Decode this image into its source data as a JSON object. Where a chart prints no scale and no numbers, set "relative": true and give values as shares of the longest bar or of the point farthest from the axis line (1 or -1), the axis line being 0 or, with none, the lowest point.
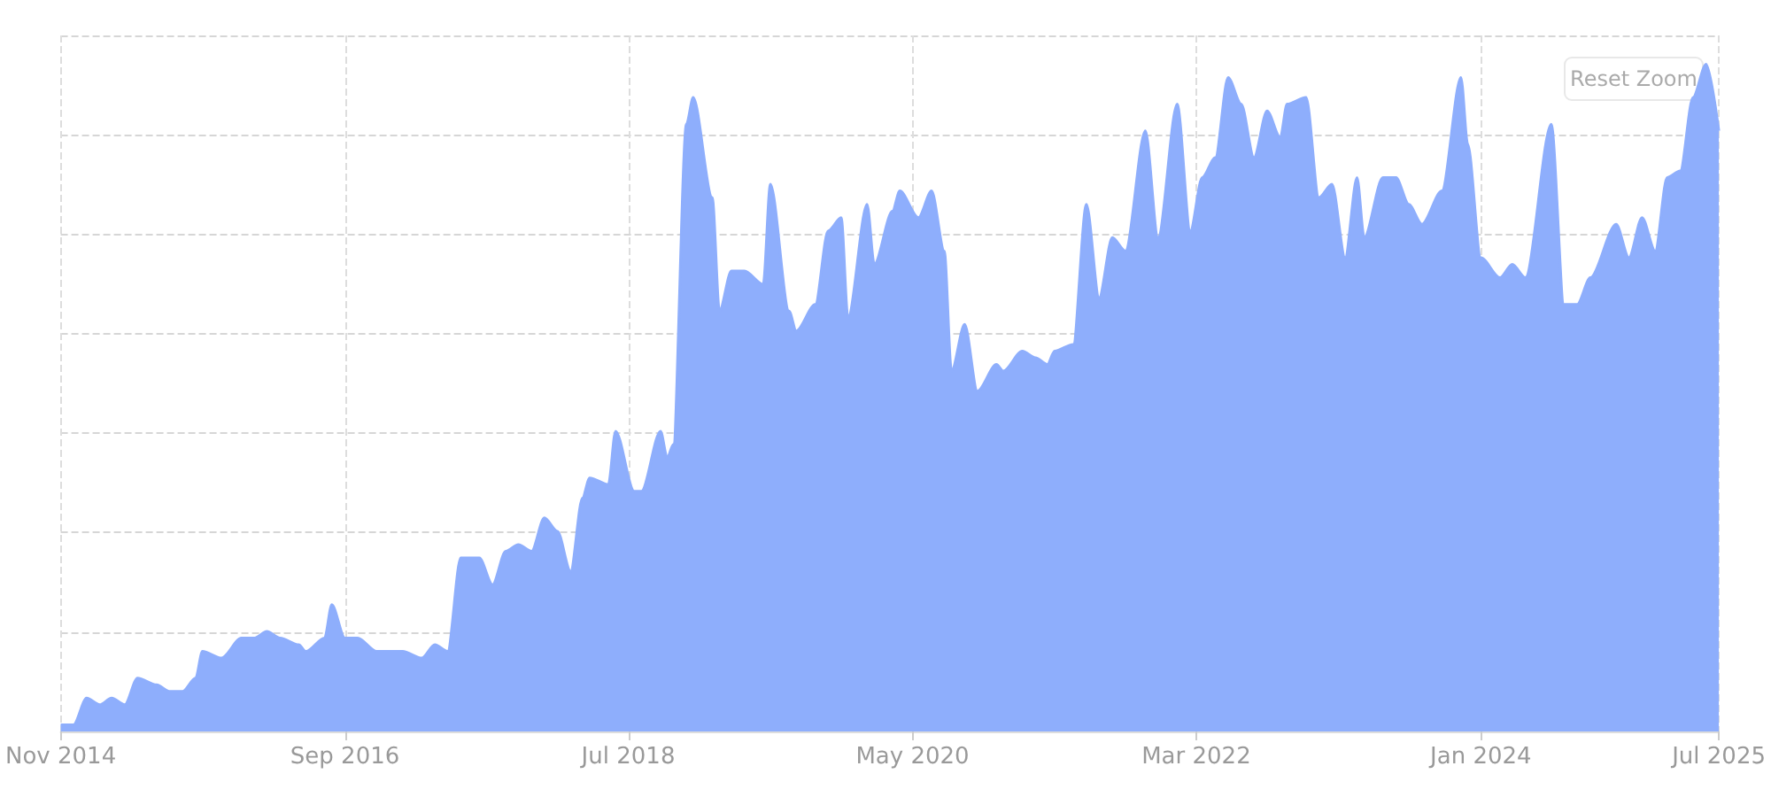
{
  "chart_data": {
    "type": "area",
    "relative": true,
    "grid": true,
    "annotations": [
      "Reset Zoom"
    ],
    "xlim": [
      "2014-11-01",
      "2025-07-15"
    ],
    "xticks": [
      {
        "value": "2014-11-01",
        "label": "Nov 2014"
      },
      {
        "value": "2016-09-01",
        "label": "Sep 2016"
      },
      {
        "value": "2018-07-01",
        "label": "Jul 2018"
      },
      {
        "value": "2020-05-01",
        "label": "May 2020"
      },
      {
        "value": "2022-03-01",
        "label": "Mar 2022"
      },
      {
        "value": "2024-01-01",
        "label": "Jan 2024"
      },
      {
        "value": "2025-07-15",
        "label": "Jul 2025"
      }
    ],
    "series": [
      {
        "color": "#8eaefc",
        "x": [
          "2014-11-01",
          "2014-12-01",
          "2015-01-01",
          "2015-02-01",
          "2015-03-01",
          "2015-04-01",
          "2015-05-01",
          "2015-06-15",
          "2015-07-15",
          "2015-08-15",
          "2015-09-15",
          "2015-10-01",
          "2015-11-15",
          "2016-01-01",
          "2016-02-01",
          "2016-03-01",
          "2016-04-01",
          "2016-05-15",
          "2016-06-01",
          "2016-07-15",
          "2016-08-01",
          "2016-09-01",
          "2016-10-01",
          "2016-11-15",
          "2016-12-15",
          "2017-01-15",
          "2017-03-01",
          "2017-04-01",
          "2017-05-01",
          "2017-06-01",
          "2017-07-15",
          "2017-08-15",
          "2017-09-15",
          "2017-10-15",
          "2017-11-15",
          "2017-12-15",
          "2018-01-15",
          "2018-02-15",
          "2018-03-15",
          "2018-04-01",
          "2018-05-15",
          "2018-06-01",
          "2018-07-15",
          "2018-08-01",
          "2018-09-15",
          "2018-10-01",
          "2018-10-15",
          "2018-11-15",
          "2018-12-01",
          "2019-01-15",
          "2019-02-01",
          "2019-03-01",
          "2019-04-01",
          "2019-05-15",
          "2019-06-01",
          "2019-07-15",
          "2019-08-01",
          "2019-09-15",
          "2019-10-15",
          "2019-11-15",
          "2019-12-01",
          "2020-01-15",
          "2020-02-01",
          "2020-03-15",
          "2020-04-01",
          "2020-05-15",
          "2020-06-15",
          "2020-07-15",
          "2020-08-01",
          "2020-09-01",
          "2020-10-01",
          "2020-11-15",
          "2020-12-01",
          "2021-01-15",
          "2021-02-15",
          "2021-03-15",
          "2021-04-01",
          "2021-05-15",
          "2021-06-15",
          "2021-07-15",
          "2021-08-15",
          "2021-09-15",
          "2021-11-01",
          "2021-12-01",
          "2022-01-15",
          "2022-02-15",
          "2022-03-15",
          "2022-04-15",
          "2022-05-15",
          "2022-06-15",
          "2022-07-15",
          "2022-08-15",
          "2022-09-15",
          "2022-10-01",
          "2022-11-15",
          "2022-12-15",
          "2023-01-15",
          "2023-02-15",
          "2023-03-15",
          "2023-04-01",
          "2023-05-15",
          "2023-06-15",
          "2023-07-15",
          "2023-08-15",
          "2023-10-01",
          "2023-11-15",
          "2023-12-01",
          "2024-01-01",
          "2024-02-15",
          "2024-03-15",
          "2024-04-15",
          "2024-06-15",
          "2024-07-15",
          "2024-08-15",
          "2024-09-15",
          "2024-11-15",
          "2024-12-15",
          "2025-01-15",
          "2025-02-15",
          "2025-03-15",
          "2025-04-15",
          "2025-05-15",
          "2025-06-15",
          "2025-07-15"
        ],
        "values": [
          0.01,
          0.01,
          0.05,
          0.04,
          0.05,
          0.04,
          0.08,
          0.07,
          0.06,
          0.06,
          0.08,
          0.12,
          0.11,
          0.14,
          0.14,
          0.15,
          0.14,
          0.13,
          0.12,
          0.14,
          0.19,
          0.14,
          0.14,
          0.12,
          0.12,
          0.12,
          0.11,
          0.13,
          0.12,
          0.26,
          0.26,
          0.22,
          0.27,
          0.28,
          0.27,
          0.32,
          0.3,
          0.24,
          0.35,
          0.38,
          0.37,
          0.45,
          0.36,
          0.36,
          0.45,
          0.41,
          0.43,
          0.91,
          0.95,
          0.8,
          0.63,
          0.69,
          0.69,
          0.67,
          0.82,
          0.63,
          0.6,
          0.64,
          0.75,
          0.77,
          0.62,
          0.79,
          0.7,
          0.78,
          0.81,
          0.77,
          0.81,
          0.72,
          0.54,
          0.61,
          0.51,
          0.55,
          0.54,
          0.57,
          0.56,
          0.55,
          0.57,
          0.58,
          0.79,
          0.65,
          0.74,
          0.72,
          0.9,
          0.74,
          0.94,
          0.75,
          0.83,
          0.86,
          0.98,
          0.94,
          0.86,
          0.93,
          0.89,
          0.94,
          0.95,
          0.8,
          0.82,
          0.71,
          0.83,
          0.74,
          0.83,
          0.83,
          0.79,
          0.76,
          0.81,
          0.98,
          0.88,
          0.71,
          0.68,
          0.7,
          0.68,
          0.91,
          0.64,
          0.64,
          0.68,
          0.76,
          0.71,
          0.77,
          0.72,
          0.83,
          0.84,
          0.95,
          1,
          0.9
        ]
      }
    ]
  }
}
